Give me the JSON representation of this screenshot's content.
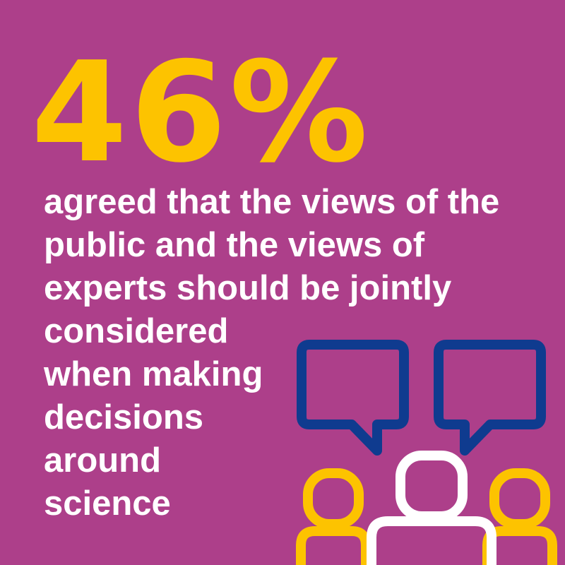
{
  "colors": {
    "background": "#ad3f8a",
    "stat": "#fdc300",
    "text": "#ffffff",
    "bubble": "#0f3b8f",
    "person_side": "#fdc300",
    "person_center": "#ffffff"
  },
  "stat": {
    "value": "46%"
  },
  "description": {
    "lines": [
      "agreed that the views of the",
      "public and the views of",
      "experts should be jointly",
      "considered",
      "when making",
      "decisions",
      "around",
      "science"
    ]
  },
  "icons": {
    "left_bubble": "speech-bubble-icon",
    "right_bubble": "speech-bubble-icon",
    "left_person": "person-icon",
    "center_person": "person-icon",
    "right_person": "person-icon"
  }
}
